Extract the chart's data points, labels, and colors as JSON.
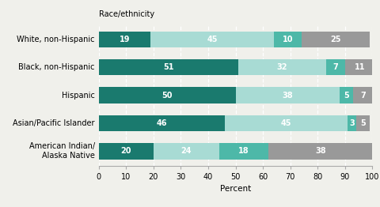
{
  "categories": [
    "White, non-Hispanic",
    "Black, non-Hispanic",
    "Hispanic",
    "Asian/Pacific Islander",
    "American Indian/\nAlaska Native"
  ],
  "series": {
    "Central city": [
      19,
      51,
      50,
      46,
      20
    ],
    "Urban fringe": [
      45,
      32,
      38,
      45,
      24
    ],
    "Town": [
      10,
      7,
      5,
      3,
      18
    ],
    "Rural": [
      25,
      11,
      7,
      5,
      38
    ]
  },
  "colors": {
    "Central city": "#1a7a6e",
    "Urban fringe": "#a8dbd4",
    "Town": "#4db8a8",
    "Rural": "#999999"
  },
  "xlabel": "Percent",
  "xlim": [
    0,
    100
  ],
  "xticks": [
    0,
    10,
    20,
    30,
    40,
    50,
    60,
    70,
    80,
    90,
    100
  ],
  "bar_height": 0.58,
  "background_color": "#f0f0eb",
  "text_color": "#ffffff",
  "label_fontsize": 7.0,
  "axis_fontsize": 7.5,
  "legend_fontsize": 7.5,
  "race_label": "Race/ethnicity"
}
